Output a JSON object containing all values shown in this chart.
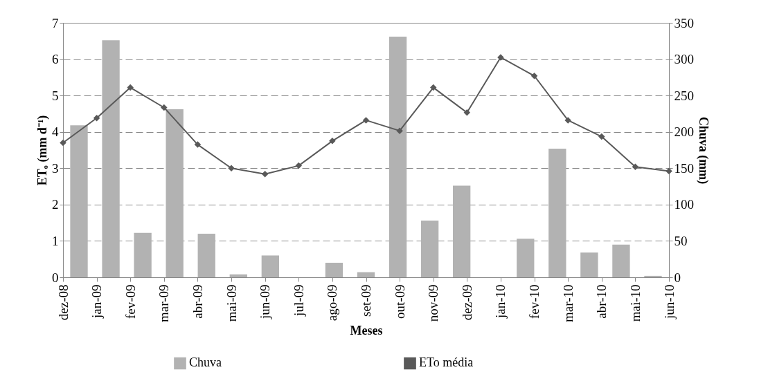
{
  "chart_data": {
    "type": "bar",
    "xlabel": "Meses",
    "ylabel": "ETₒ (mm d⁻¹)",
    "y2label": "Chuva (mm)",
    "categories": [
      "dez-08",
      "jan-09",
      "fev-09",
      "mar-09",
      "abr-09",
      "mai-09",
      "jun-09",
      "jul-09",
      "ago-09",
      "set-09",
      "out-09",
      "nov-09",
      "dez-09",
      "jan-10",
      "fev-10",
      "mar-10",
      "abr-10",
      "mai-10",
      "jun-10"
    ],
    "series": [
      {
        "name": "Chuva",
        "axis": "y2",
        "color": "#b2b2b2",
        "values": [
          209,
          326,
          61,
          231,
          60,
          4,
          30,
          0,
          20,
          7,
          331,
          78,
          126,
          0,
          53,
          177,
          34,
          45,
          2
        ]
      },
      {
        "name": "ETo média",
        "type": "line",
        "color": "#595959",
        "marker": "diamond",
        "line_style": "solid",
        "values": [
          3.7,
          4.38,
          5.22,
          4.67,
          3.65,
          3.0,
          2.84,
          3.07,
          3.75,
          4.32,
          4.03,
          5.22,
          4.53,
          6.05,
          5.54,
          4.32,
          3.87,
          3.04,
          2.92
        ]
      }
    ],
    "ylim": [
      0,
      7
    ],
    "yticks": [
      0,
      1,
      2,
      3,
      4,
      5,
      6,
      7
    ],
    "y2lim": [
      0,
      350
    ],
    "y2ticks": [
      0,
      50,
      100,
      150,
      200,
      250,
      300,
      350
    ],
    "grid": "y",
    "legend": "bottom"
  }
}
